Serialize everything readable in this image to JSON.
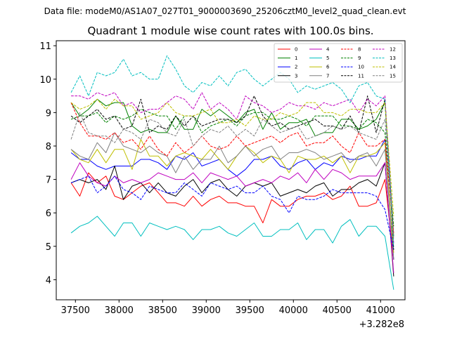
{
  "header": {
    "file_label": "Data file: modeM0/AS1A07_027T01_9000003690_25206cztM0_level2_quad_clean.evt"
  },
  "chart_data": {
    "type": "line",
    "title": "Quadrant 1 module wise count rates with 100.0s bins.",
    "xlabel": "",
    "ylabel": "",
    "x_offset_label": "+3.282e8",
    "xlim": [
      37280,
      41280
    ],
    "ylim": [
      3.4,
      11.15
    ],
    "xticks": [
      37500,
      38000,
      38500,
      39000,
      39500,
      40000,
      40500,
      41000
    ],
    "xtick_labels": [
      "37500",
      "38000",
      "38500",
      "39000",
      "39500",
      "40000",
      "40500",
      "41000"
    ],
    "yticks": [
      4,
      5,
      6,
      7,
      8,
      9,
      10,
      11
    ],
    "ytick_labels": [
      "4",
      "5",
      "6",
      "7",
      "8",
      "9",
      "10",
      "11"
    ],
    "legend_position": "top-right",
    "x": [
      37450,
      37550,
      37650,
      37750,
      37850,
      37950,
      38050,
      38150,
      38250,
      38350,
      38450,
      38550,
      38650,
      38750,
      38850,
      38950,
      39050,
      39150,
      39250,
      39350,
      39450,
      39550,
      39650,
      39750,
      39850,
      39950,
      40050,
      40150,
      40250,
      40350,
      40450,
      40550,
      40650,
      40750,
      40850,
      40950,
      41050,
      41150
    ],
    "series": [
      {
        "name": "0",
        "color": "#ff0000",
        "dash": "solid",
        "values": [
          6.9,
          6.5,
          7.2,
          6.9,
          7.1,
          6.5,
          6.4,
          6.6,
          6.8,
          6.9,
          6.6,
          6.3,
          6.3,
          6.2,
          6.5,
          6.2,
          6.4,
          6.5,
          6.3,
          6.3,
          6.2,
          6.2,
          5.7,
          6.4,
          6.2,
          6.2,
          6.4,
          6.5,
          6.5,
          6.6,
          6.4,
          6.5,
          6.8,
          6.2,
          6.2,
          6.3,
          7.0,
          4.6
        ]
      },
      {
        "name": "1",
        "color": "#008000",
        "dash": "solid",
        "values": [
          9.3,
          8.9,
          9.1,
          9.4,
          9.2,
          9.3,
          9.3,
          8.6,
          8.4,
          8.5,
          8.4,
          8.4,
          8.9,
          8.5,
          8.5,
          9.1,
          8.9,
          9.1,
          8.9,
          8.7,
          9.0,
          9.1,
          8.5,
          9.0,
          8.5,
          8.7,
          8.7,
          8.8,
          8.3,
          8.4,
          8.4,
          8.8,
          8.8,
          8.5,
          8.6,
          8.8,
          9.3,
          5.3
        ]
      },
      {
        "name": "2",
        "color": "#0000ff",
        "dash": "solid",
        "values": [
          7.8,
          7.6,
          7.6,
          7.4,
          7.3,
          7.4,
          7.4,
          7.4,
          7.6,
          7.6,
          7.5,
          7.3,
          7.7,
          7.6,
          7.8,
          7.4,
          7.5,
          7.6,
          7.3,
          7.1,
          7.3,
          7.6,
          7.6,
          7.7,
          7.4,
          7.3,
          7.5,
          7.6,
          7.3,
          7.5,
          7.4,
          7.7,
          7.6,
          7.6,
          7.7,
          7.7,
          8.2,
          4.6
        ]
      },
      {
        "name": "3",
        "color": "#000000",
        "dash": "solid",
        "values": [
          6.9,
          7.0,
          6.9,
          7.0,
          6.7,
          7.4,
          6.4,
          6.8,
          6.9,
          6.6,
          6.9,
          6.6,
          6.5,
          6.8,
          7.0,
          6.6,
          6.9,
          7.0,
          6.7,
          6.5,
          6.8,
          6.9,
          6.8,
          6.9,
          6.5,
          6.6,
          6.7,
          6.6,
          6.8,
          6.9,
          6.5,
          6.7,
          6.7,
          6.9,
          7.0,
          6.8,
          7.5,
          4.1
        ]
      },
      {
        "name": "4",
        "color": "#bf00bf",
        "dash": "solid",
        "values": [
          7.0,
          7.5,
          7.1,
          6.9,
          6.8,
          7.1,
          6.9,
          7.0,
          6.9,
          7.0,
          7.2,
          7.1,
          7.0,
          7.0,
          7.2,
          6.9,
          7.2,
          7.1,
          7.0,
          7.1,
          6.8,
          6.9,
          7.0,
          6.9,
          7.1,
          7.0,
          7.2,
          6.9,
          7.3,
          7.0,
          7.3,
          7.2,
          7.0,
          7.1,
          7.1,
          7.1,
          7.5,
          4.2
        ]
      },
      {
        "name": "5",
        "color": "#00bfbf",
        "dash": "solid",
        "values": [
          5.4,
          5.6,
          5.7,
          5.9,
          5.6,
          5.3,
          5.7,
          5.7,
          5.3,
          5.7,
          5.6,
          5.5,
          5.6,
          5.5,
          5.2,
          5.5,
          5.5,
          5.6,
          5.4,
          5.3,
          5.5,
          5.7,
          5.3,
          5.3,
          5.5,
          5.5,
          5.7,
          5.2,
          5.5,
          5.5,
          5.1,
          5.6,
          5.8,
          5.3,
          5.6,
          5.6,
          5.3,
          3.7
        ]
      },
      {
        "name": "6",
        "color": "#bfbf00",
        "dash": "solid",
        "values": [
          7.9,
          7.6,
          7.5,
          7.9,
          7.5,
          7.9,
          7.9,
          7.3,
          8.2,
          7.7,
          7.7,
          7.4,
          7.7,
          7.8,
          7.7,
          7.6,
          7.9,
          7.6,
          7.3,
          7.7,
          8.0,
          7.8,
          7.5,
          7.7,
          7.6,
          7.2,
          7.7,
          7.6,
          7.6,
          7.7,
          7.5,
          7.7,
          7.2,
          7.7,
          7.7,
          7.8,
          8.1,
          4.8
        ]
      },
      {
        "name": "7",
        "color": "#808080",
        "dash": "solid",
        "values": [
          7.9,
          7.7,
          7.6,
          8.1,
          7.8,
          8.4,
          8.0,
          7.9,
          7.8,
          8.0,
          7.8,
          7.7,
          7.2,
          7.7,
          7.3,
          7.6,
          7.6,
          8.0,
          7.5,
          7.7,
          8.0,
          7.7,
          7.9,
          8.0,
          7.6,
          7.8,
          7.8,
          7.9,
          7.8,
          7.6,
          7.7,
          7.8,
          7.5,
          7.7,
          7.8,
          7.4,
          7.9,
          4.6
        ]
      },
      {
        "name": "8",
        "color": "#ff0000",
        "dash": "dashed",
        "values": [
          9.3,
          8.7,
          8.3,
          8.3,
          8.2,
          8.4,
          8.1,
          8.2,
          7.9,
          8.3,
          7.9,
          7.7,
          8.1,
          7.8,
          8.0,
          8.3,
          8.0,
          7.9,
          8.0,
          8.3,
          8.0,
          8.1,
          8.2,
          8.3,
          8.1,
          8.3,
          8.4,
          8.0,
          8.1,
          8.1,
          8.3,
          8.0,
          7.8,
          8.4,
          8.0,
          8.0,
          8.2,
          5.4
        ]
      },
      {
        "name": "9",
        "color": "#008000",
        "dash": "dashed",
        "values": [
          8.8,
          8.9,
          8.9,
          9.0,
          8.7,
          8.9,
          8.8,
          8.9,
          9.1,
          9.0,
          8.9,
          8.9,
          8.5,
          8.9,
          8.9,
          8.4,
          8.6,
          8.7,
          8.8,
          8.6,
          8.9,
          9.0,
          9.0,
          8.8,
          8.8,
          8.9,
          8.8,
          8.6,
          8.9,
          8.9,
          8.9,
          8.6,
          8.6,
          8.5,
          8.8,
          8.7,
          8.4,
          5.6
        ]
      },
      {
        "name": "10",
        "color": "#0000ff",
        "dash": "dashed",
        "values": [
          6.9,
          7.0,
          7.1,
          6.6,
          6.8,
          7.1,
          6.7,
          6.6,
          6.4,
          6.8,
          6.7,
          6.6,
          6.6,
          6.9,
          6.7,
          6.5,
          6.9,
          6.8,
          6.7,
          6.8,
          6.6,
          6.6,
          6.8,
          6.5,
          6.4,
          6.0,
          6.5,
          6.4,
          6.4,
          6.5,
          6.7,
          6.6,
          6.6,
          6.6,
          6.6,
          6.5,
          6.1,
          4.9
        ]
      },
      {
        "name": "11",
        "color": "#000000",
        "dash": "dashed",
        "values": [
          8.9,
          8.7,
          8.9,
          9.1,
          8.8,
          8.9,
          8.5,
          8.6,
          9.4,
          8.4,
          8.6,
          8.5,
          8.9,
          8.6,
          8.9,
          8.6,
          8.7,
          8.8,
          8.8,
          8.7,
          8.9,
          9.5,
          8.9,
          8.6,
          8.7,
          8.5,
          8.6,
          8.7,
          8.8,
          8.6,
          8.6,
          8.5,
          8.9,
          8.4,
          9.5,
          8.4,
          9.4,
          4.9
        ]
      },
      {
        "name": "12",
        "color": "#bf00bf",
        "dash": "dashed",
        "values": [
          9.5,
          9.5,
          9.4,
          9.6,
          9.5,
          9.6,
          9.2,
          9.3,
          9.0,
          9.1,
          9.1,
          9.3,
          9.5,
          9.4,
          9.1,
          9.6,
          9.1,
          9.3,
          9.1,
          8.8,
          9.5,
          9.3,
          9.2,
          9.0,
          9.1,
          9.3,
          9.2,
          9.2,
          9.1,
          9.3,
          9.2,
          9.3,
          9.4,
          9.0,
          9.4,
          9.2,
          9.5,
          5.1
        ]
      },
      {
        "name": "13",
        "color": "#00bfbf",
        "dash": "dashed",
        "values": [
          9.6,
          10.1,
          9.5,
          10.2,
          10.1,
          10.2,
          10.6,
          10.1,
          10.2,
          10.0,
          10.0,
          10.7,
          10.3,
          9.8,
          9.6,
          9.9,
          9.8,
          10.1,
          9.8,
          10.2,
          10.3,
          10.0,
          9.8,
          10.0,
          10.2,
          10.0,
          9.6,
          9.8,
          9.7,
          9.8,
          9.9,
          9.7,
          9.3,
          9.8,
          9.9,
          9.5,
          9.4,
          5.0
        ]
      },
      {
        "name": "14",
        "color": "#bfbf00",
        "dash": "dashed",
        "values": [
          9.3,
          9.1,
          9.2,
          9.4,
          9.1,
          9.4,
          9.2,
          9.2,
          8.8,
          8.9,
          9.0,
          9.3,
          9.0,
          8.9,
          8.9,
          9.0,
          9.1,
          8.7,
          8.7,
          8.8,
          8.6,
          8.9,
          8.8,
          8.8,
          9.0,
          8.9,
          9.0,
          9.3,
          9.3,
          9.0,
          9.0,
          8.9,
          9.1,
          9.1,
          9.0,
          9.0,
          9.3,
          5.9
        ]
      },
      {
        "name": "15",
        "color": "#808080",
        "dash": "dashed",
        "values": [
          8.2,
          9.0,
          8.4,
          8.3,
          8.3,
          8.1,
          8.5,
          8.4,
          8.2,
          8.8,
          8.7,
          8.4,
          8.3,
          8.8,
          8.0,
          8.3,
          8.5,
          8.4,
          8.6,
          8.3,
          8.5,
          8.3,
          8.8,
          8.6,
          8.4,
          8.5,
          8.6,
          8.2,
          8.3,
          8.4,
          8.6,
          8.5,
          8.6,
          8.4,
          8.3,
          8.2,
          8.8,
          5.2
        ]
      }
    ]
  }
}
